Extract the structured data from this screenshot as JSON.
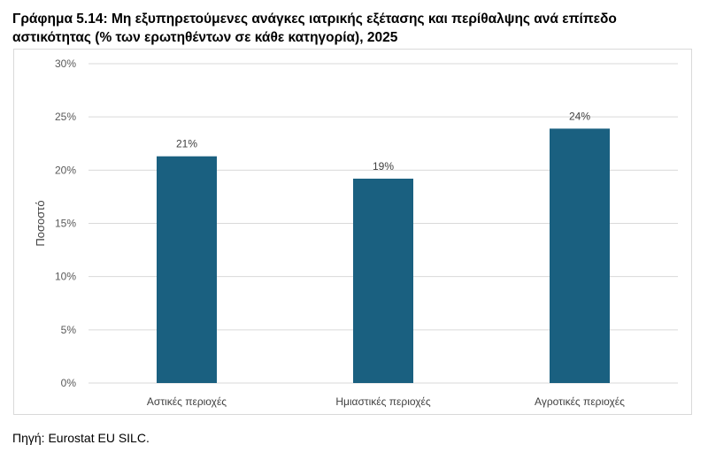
{
  "title": "Γράφημα 5.14: Μη εξυπηρετούμενες ανάγκες ιατρικής εξέτασης και περίθαλψης ανά επίπεδο αστικότητας (% των ερωτηθέντων σε κάθε κατηγορία), 2025",
  "source": "Πηγή: Eurostat EU SILC.",
  "chart_data": {
    "type": "bar",
    "categories": [
      "Αστικές περιοχές",
      "Ημιαστικές περιοχές",
      "Αγροτικές περιοχές"
    ],
    "values": [
      21.3,
      19.2,
      23.9
    ],
    "data_labels": [
      "21%",
      "19%",
      "24%"
    ],
    "ylabel": "Ποσοστό",
    "ylim": [
      0,
      30
    ],
    "yticks": [
      0,
      5,
      10,
      15,
      20,
      25,
      30
    ],
    "ytick_labels": [
      "0%",
      "5%",
      "10%",
      "15%",
      "20%",
      "25%",
      "30%"
    ],
    "grid": true,
    "bar_color": "#1a6080",
    "grid_color": "#d9d9d9"
  }
}
